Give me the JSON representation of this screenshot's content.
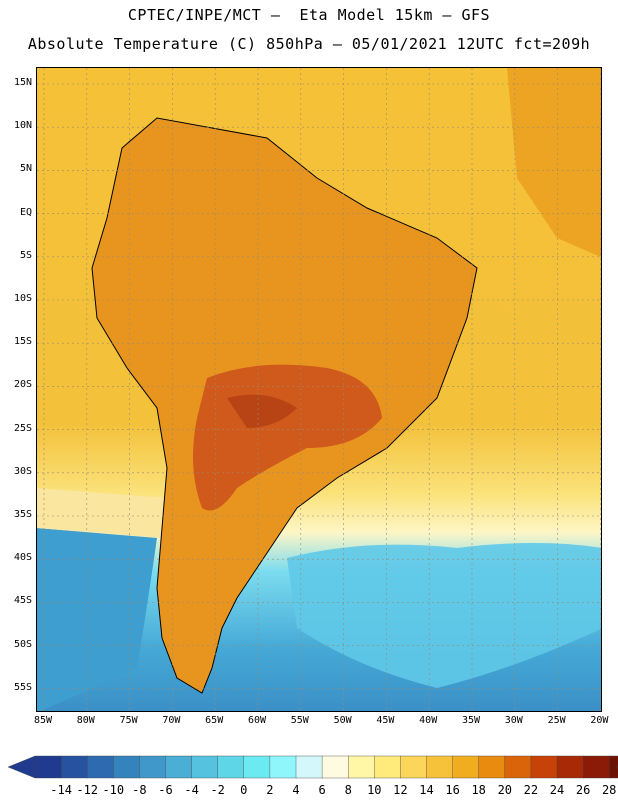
{
  "header": {
    "line1": "CPTEC/INPE/MCT –  Eta Model 15km – GFS",
    "line2": "Absolute Temperature (C) 850hPa – 05/01/2021 12UTC fct=209h"
  },
  "map": {
    "lat_labels": [
      "15N",
      "10N",
      "5N",
      "EQ",
      "5S",
      "10S",
      "15S",
      "20S",
      "25S",
      "30S",
      "35S",
      "40S",
      "45S",
      "50S",
      "55S"
    ],
    "lon_labels": [
      "85W",
      "80W",
      "75W",
      "70W",
      "65W",
      "60W",
      "55W",
      "50W",
      "45W",
      "40W",
      "35W",
      "30W",
      "25W",
      "20W"
    ]
  },
  "colorbar": {
    "ticks": [
      "-14",
      "-12",
      "-10",
      "-8",
      "-6",
      "-4",
      "-2",
      "0",
      "2",
      "4",
      "6",
      "8",
      "10",
      "12",
      "14",
      "16",
      "18",
      "20",
      "22",
      "24",
      "26",
      "28"
    ],
    "colors": [
      "#1f3a8f",
      "#2652a0",
      "#2d6aaf",
      "#3583bd",
      "#3f98c9",
      "#4aaed5",
      "#55c3df",
      "#5fd6e8",
      "#6ceaf2",
      "#8ff7fb",
      "#d3f7fb",
      "#fffbe1",
      "#fff6a6",
      "#ffea7c",
      "#fcd65a",
      "#f6c23a",
      "#f0ad1f",
      "#e88b0e",
      "#d9640a",
      "#c64208",
      "#a82906",
      "#8b1a06",
      "#6d1305"
    ]
  },
  "ocean_color": "#f2bf32",
  "land_color": "#e59320",
  "hot_color": "#c9521c",
  "cold_color": "#4fb5e0"
}
